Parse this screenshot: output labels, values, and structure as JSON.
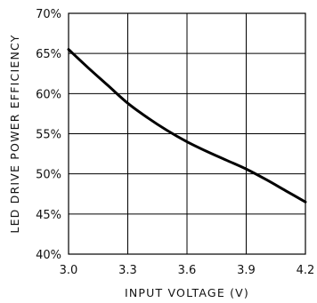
{
  "chart_data": {
    "type": "line",
    "title": "",
    "xlabel": "INPUT VOLTAGE (V)",
    "ylabel": "LED DRIVE POWER EFFICIENCY",
    "xlim": [
      3.0,
      4.2
    ],
    "ylim": [
      40,
      70
    ],
    "x_ticks": [
      3.0,
      3.3,
      3.6,
      3.9,
      4.2
    ],
    "x_tick_labels": [
      "3.0",
      "3.3",
      "3.6",
      "3.9",
      "4.2"
    ],
    "y_ticks": [
      40,
      45,
      50,
      55,
      60,
      65,
      70
    ],
    "y_tick_labels": [
      "40%",
      "45%",
      "50%",
      "55%",
      "60%",
      "65%",
      "70%"
    ],
    "grid": true,
    "series": [
      {
        "x": [
          3.0,
          3.1,
          3.2,
          3.3,
          3.4,
          3.5,
          3.6,
          3.7,
          3.8,
          3.9,
          4.0,
          4.1,
          4.2
        ],
        "y": [
          65.5,
          63.2,
          61.0,
          58.8,
          57.0,
          55.4,
          54.0,
          52.8,
          51.7,
          50.6,
          49.3,
          47.9,
          46.5
        ],
        "color": "#000000"
      }
    ]
  }
}
